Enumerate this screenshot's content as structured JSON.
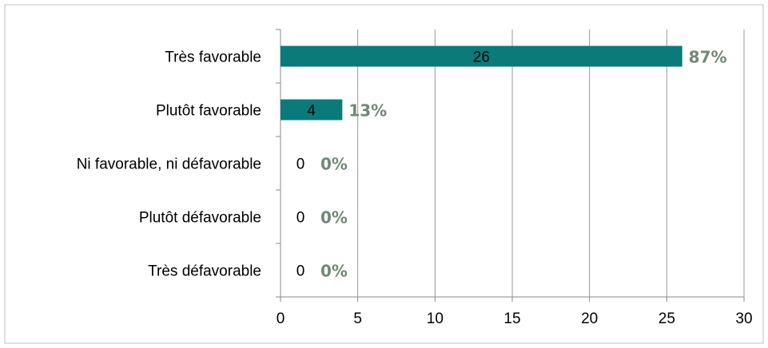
{
  "colors": {
    "bar": "#0a7a7a",
    "percent_text": "#6f8a74",
    "grid": "#999999",
    "axis": "#8a8a8a",
    "frame": "#bfbfbf"
  },
  "chart_data": {
    "type": "bar",
    "orientation": "horizontal",
    "title": "",
    "xlabel": "",
    "ylabel": "",
    "categories": [
      "Très favorable",
      "Plutôt favorable",
      "Ni favorable, ni défavorable",
      "Plutôt défavorable",
      "Très défavorable"
    ],
    "values": [
      26,
      4,
      0,
      0,
      0
    ],
    "value_labels": [
      "26",
      "4",
      "0",
      "0",
      "0"
    ],
    "percent_labels": [
      "87%",
      "13%",
      "0%",
      "0%",
      "0%"
    ],
    "xlim": [
      0,
      30
    ],
    "x_ticks": [
      "0",
      "5",
      "10",
      "15",
      "20",
      "25",
      "30"
    ],
    "grid": true,
    "legend": "none"
  }
}
